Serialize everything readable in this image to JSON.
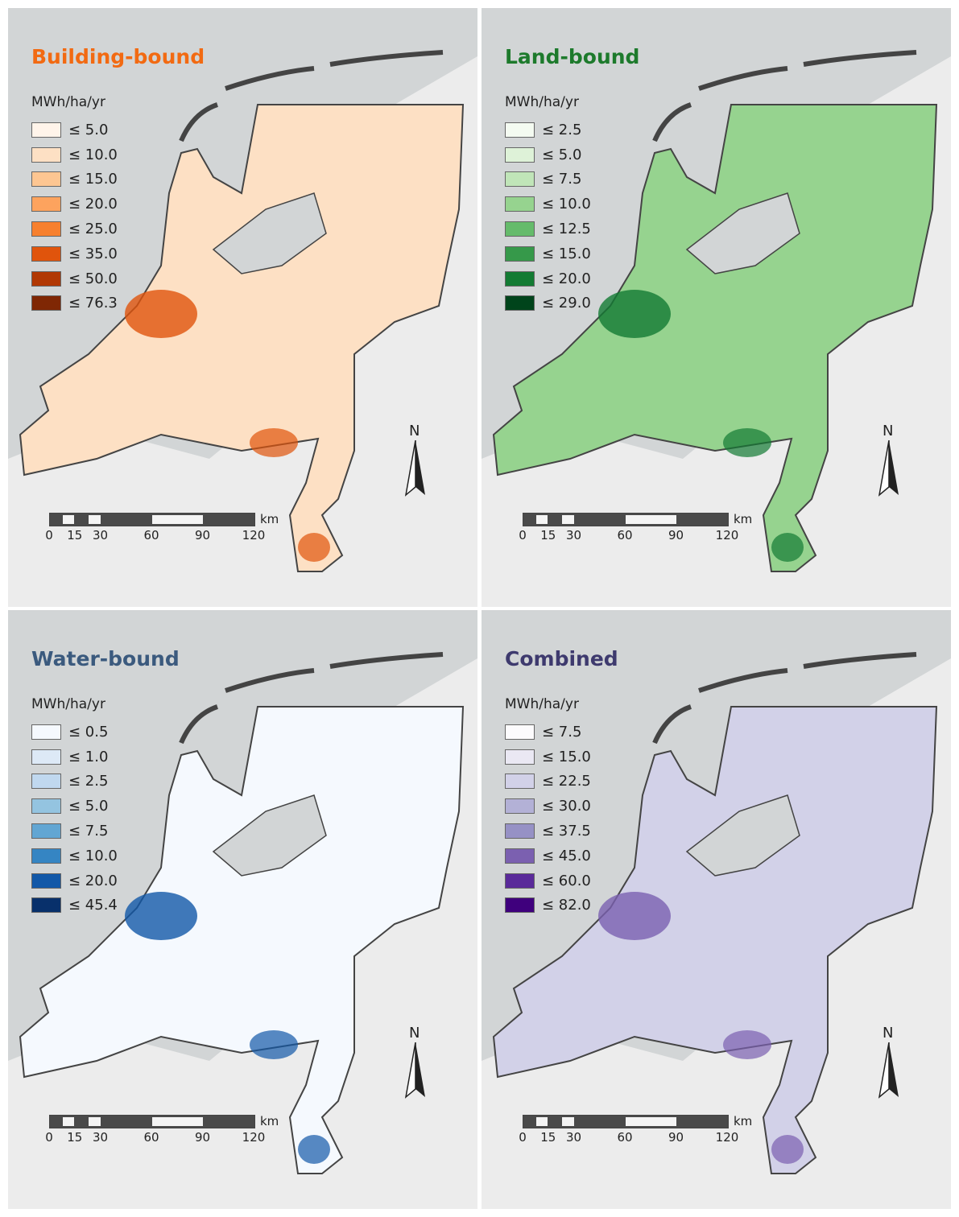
{
  "panels": [
    {
      "title": "Building-bound",
      "title_color": "#f26a12",
      "unit": "MWh/ha/yr",
      "legend": [
        {
          "label": "≤ 5.0",
          "color": "#fff4ea"
        },
        {
          "label": "≤ 10.0",
          "color": "#fde0c4"
        },
        {
          "label": "≤ 15.0",
          "color": "#fdc692"
        },
        {
          "label": "≤ 20.0",
          "color": "#fda35e"
        },
        {
          "label": "≤ 25.0",
          "color": "#f7802e"
        },
        {
          "label": "≤ 35.0",
          "color": "#e0540c"
        },
        {
          "label": "≤ 50.0",
          "color": "#b13804"
        },
        {
          "label": "≤ 76.3",
          "color": "#7f2704"
        }
      ],
      "base_color": "#fde0c4",
      "accent_color": "#e0540c"
    },
    {
      "title": "Land-bound",
      "title_color": "#1d7a2c",
      "unit": "MWh/ha/yr",
      "legend": [
        {
          "label": "≤ 2.5",
          "color": "#f4fbf1"
        },
        {
          "label": "≤ 5.0",
          "color": "#def2d8"
        },
        {
          "label": "≤ 7.5",
          "color": "#c0e5b8"
        },
        {
          "label": "≤ 10.0",
          "color": "#96d38f"
        },
        {
          "label": "≤ 12.5",
          "color": "#65bb6b"
        },
        {
          "label": "≤ 15.0",
          "color": "#36994a"
        },
        {
          "label": "≤ 20.0",
          "color": "#137b33"
        },
        {
          "label": "≤ 29.0",
          "color": "#00441b"
        }
      ],
      "base_color": "#96d38f",
      "accent_color": "#137b33"
    },
    {
      "title": "Water-bound",
      "title_color": "#3b5a7e",
      "unit": "MWh/ha/yr",
      "legend": [
        {
          "label": "≤ 0.5",
          "color": "#f5f9fe"
        },
        {
          "label": "≤ 1.0",
          "color": "#dde9f6"
        },
        {
          "label": "≤ 2.5",
          "color": "#c0d8ef"
        },
        {
          "label": "≤ 5.0",
          "color": "#94c4e0"
        },
        {
          "label": "≤ 7.5",
          "color": "#62a6d3"
        },
        {
          "label": "≤ 10.0",
          "color": "#3585c3"
        },
        {
          "label": "≤ 20.0",
          "color": "#1258a8"
        },
        {
          "label": "≤ 45.4",
          "color": "#08306b"
        }
      ],
      "base_color": "#f5f9fe",
      "accent_color": "#1258a8"
    },
    {
      "title": "Combined",
      "title_color": "#3e3a6e",
      "unit": "MWh/ha/yr",
      "legend": [
        {
          "label": "≤ 7.5",
          "color": "#fcfbfd"
        },
        {
          "label": "≤ 15.0",
          "color": "#eae8f3"
        },
        {
          "label": "≤ 22.5",
          "color": "#d2d1e8"
        },
        {
          "label": "≤ 30.0",
          "color": "#b3b1d6"
        },
        {
          "label": "≤ 37.5",
          "color": "#9691c5"
        },
        {
          "label": "≤ 45.0",
          "color": "#7b60b0"
        },
        {
          "label": "≤ 60.0",
          "color": "#5a2a9a"
        },
        {
          "label": "≤ 82.0",
          "color": "#3f007d"
        }
      ],
      "base_color": "#d2d1e8",
      "accent_color": "#7b60b0"
    }
  ],
  "scale_bar": {
    "unit": "km",
    "ticks": [
      "0",
      "15",
      "30",
      "60",
      "90",
      "120"
    ]
  },
  "north_arrow": {
    "label": "N"
  }
}
